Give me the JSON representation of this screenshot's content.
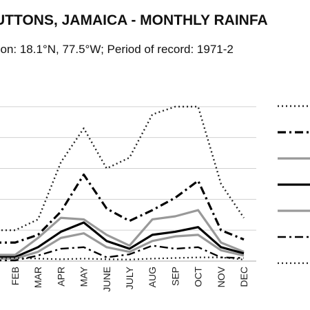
{
  "chart_data": {
    "type": "line",
    "title": "UTTONS, JAMAICA - MONTHLY RAINFA",
    "subtitle": "tion: 18.1°N, 77.5°W; Period of record: 1971-2",
    "categories": [
      "FEB",
      "MAR",
      "APR",
      "MAY",
      "JUNE",
      "JULY",
      "AUG",
      "SEP",
      "OCT",
      "NOV",
      "DEC"
    ],
    "ylim": [
      0,
      600
    ],
    "grid": "horizontal",
    "legend_position": "right",
    "series": [
      {
        "style": "dotted",
        "color": "#222222",
        "width": 2.4,
        "values": [
          100,
          135,
          320,
          430,
          300,
          335,
          475,
          500,
          500,
          250,
          140
        ]
      },
      {
        "style": "dashdot",
        "color": "#000000",
        "width": 3.2,
        "values": [
          60,
          85,
          160,
          280,
          170,
          130,
          165,
          205,
          260,
          100,
          70
        ]
      },
      {
        "style": "solid",
        "color": "#999999",
        "width": 3.2,
        "values": [
          20,
          75,
          140,
          135,
          85,
          50,
          135,
          145,
          165,
          60,
          30
        ]
      },
      {
        "style": "solid",
        "color": "#000000",
        "width": 3.2,
        "values": [
          13,
          45,
          95,
          125,
          65,
          40,
          85,
          95,
          110,
          45,
          25
        ]
      },
      {
        "style": "solid",
        "color": "#999999",
        "width": 3.2,
        "values": [
          8,
          30,
          75,
          90,
          45,
          30,
          65,
          80,
          85,
          35,
          18
        ]
      },
      {
        "style": "dashdot",
        "color": "#000000",
        "width": 2.4,
        "values": [
          2,
          18,
          40,
          45,
          12,
          22,
          50,
          40,
          45,
          12,
          10
        ]
      },
      {
        "style": "dotted",
        "color": "#222222",
        "width": 2.2,
        "values": [
          10,
          8,
          6,
          8,
          6,
          5,
          8,
          10,
          12,
          12,
          5
        ]
      }
    ]
  }
}
